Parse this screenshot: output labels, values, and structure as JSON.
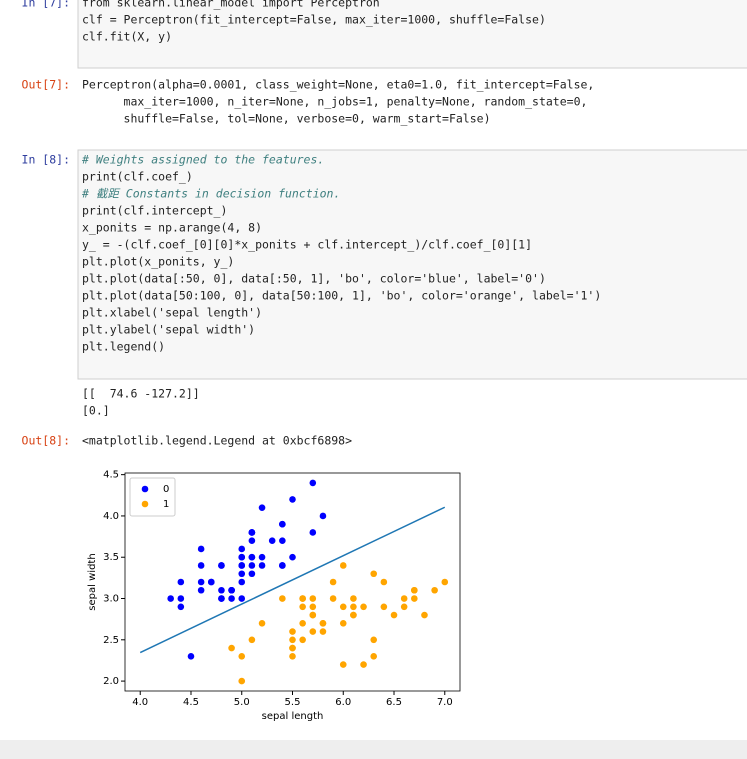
{
  "cells": [
    {
      "prompt": "In [7]:",
      "code": [
        "from sklearn.linear_model import Perceptron",
        "clf = Perceptron(fit_intercept=False, max_iter=1000, shuffle=False)",
        "clf.fit(X, y)"
      ]
    },
    {
      "prompt": "Out[7]:",
      "text": [
        "Perceptron(alpha=0.0001, class_weight=None, eta0=1.0, fit_intercept=False,",
        "      max_iter=1000, n_iter=None, n_jobs=1, penalty=None, random_state=0,",
        "      shuffle=False, tol=None, verbose=0, warm_start=False)"
      ]
    },
    {
      "prompt": "In [8]:",
      "code": [
        "# Weights assigned to the features.",
        "print(clf.coef_)",
        "# 截距 Constants in decision function.",
        "print(clf.intercept_)",
        "x_ponits = np.arange(4, 8)",
        "y_ = -(clf.coef_[0][0]*x_ponits + clf.intercept_)/clf.coef_[0][1]",
        "plt.plot(x_ponits, y_)",
        "plt.plot(data[:50, 0], data[:50, 1], 'bo', color='blue', label='0')",
        "plt.plot(data[50:100, 0], data[50:100, 1], 'bo', color='orange', label='1')",
        "plt.xlabel('sepal length')",
        "plt.ylabel('sepal width')",
        "plt.legend()"
      ]
    },
    {
      "text": [
        "[[  74.6 -127.2]]",
        "[0.]"
      ]
    },
    {
      "prompt": "Out[8]:",
      "text": [
        "<matplotlib.legend.Legend at 0xbcf6898>"
      ]
    }
  ],
  "chart_data": {
    "type": "scatter",
    "xlabel": "sepal length",
    "ylabel": "sepal width",
    "xlim": [
      3.85,
      7.15
    ],
    "ylim": [
      1.88,
      4.52
    ],
    "xticks": [
      {
        "value": 4,
        "label": "4.0"
      },
      4.5,
      {
        "value": 5,
        "label": "5.0"
      },
      5.5,
      {
        "value": 6,
        "label": "6.0"
      },
      6.5,
      {
        "value": 7,
        "label": "7.0"
      }
    ],
    "yticks": [
      {
        "value": 2,
        "label": "2.0"
      },
      2.5,
      {
        "value": 3,
        "label": "3.0"
      },
      3.5,
      {
        "value": 4,
        "label": "4.0"
      },
      4.5
    ],
    "legend": "upper left",
    "line": {
      "color": "#1f77b4",
      "x": [
        4,
        5,
        6,
        7
      ],
      "values": [
        2.3459,
        2.9324,
        3.5189,
        4.1053
      ]
    },
    "series": [
      {
        "name": "0",
        "color": "#0000ff",
        "x": [
          5.1,
          4.9,
          4.7,
          4.6,
          5.0,
          5.4,
          4.6,
          5.0,
          4.4,
          4.9,
          5.4,
          4.8,
          4.8,
          4.3,
          5.8,
          5.7,
          5.4,
          5.1,
          5.7,
          5.1,
          5.4,
          5.1,
          4.6,
          5.1,
          4.8,
          5.0,
          5.0,
          5.2,
          5.2,
          4.7,
          4.8,
          5.4,
          5.2,
          5.5,
          4.9,
          5.0,
          5.5,
          4.9,
          4.4,
          5.1,
          5.0,
          4.5,
          4.4,
          5.0,
          5.1,
          4.8,
          5.1,
          4.6,
          5.3,
          5.0
        ],
        "values": [
          3.5,
          3.0,
          3.2,
          3.1,
          3.6,
          3.9,
          3.4,
          3.4,
          2.9,
          3.1,
          3.7,
          3.4,
          3.0,
          3.0,
          4.0,
          4.4,
          3.9,
          3.5,
          3.8,
          3.8,
          3.4,
          3.7,
          3.6,
          3.3,
          3.4,
          3.0,
          3.4,
          3.5,
          3.4,
          3.2,
          3.1,
          3.4,
          4.1,
          4.2,
          3.1,
          3.2,
          3.5,
          3.1,
          3.0,
          3.4,
          3.5,
          2.3,
          3.2,
          3.5,
          3.8,
          3.0,
          3.8,
          3.2,
          3.7,
          3.3
        ]
      },
      {
        "name": "1",
        "color": "#ffa500",
        "x": [
          7.0,
          6.4,
          6.9,
          5.5,
          6.5,
          5.7,
          6.3,
          4.9,
          6.6,
          5.2,
          5.0,
          5.9,
          6.0,
          6.1,
          5.6,
          6.7,
          5.6,
          5.8,
          6.2,
          5.6,
          5.9,
          6.1,
          6.3,
          6.1,
          6.4,
          6.6,
          6.8,
          6.7,
          6.0,
          5.7,
          5.5,
          5.5,
          5.8,
          6.0,
          5.4,
          6.0,
          6.7,
          6.3,
          5.6,
          5.5,
          5.5,
          6.1,
          5.8,
          5.0,
          5.6,
          5.7,
          5.7,
          6.2,
          5.1,
          5.7
        ],
        "values": [
          3.2,
          3.2,
          3.1,
          2.3,
          2.8,
          2.8,
          3.3,
          2.4,
          2.9,
          2.7,
          2.0,
          3.0,
          2.2,
          2.9,
          2.9,
          3.1,
          3.0,
          2.7,
          2.2,
          2.5,
          3.2,
          2.8,
          2.5,
          2.8,
          2.9,
          3.0,
          2.8,
          3.0,
          2.9,
          2.6,
          2.4,
          2.4,
          2.7,
          2.7,
          3.0,
          3.4,
          3.1,
          2.3,
          3.0,
          2.5,
          2.6,
          3.0,
          2.6,
          2.3,
          2.7,
          3.0,
          2.9,
          2.9,
          2.5,
          2.8
        ]
      }
    ]
  }
}
